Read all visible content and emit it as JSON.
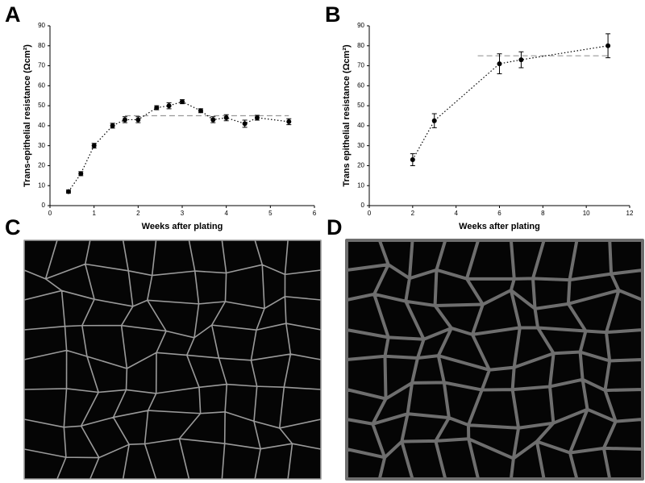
{
  "chart_data": [
    {
      "type": "scatter-line",
      "label": "A",
      "xlabel": "Weeks after plating",
      "ylabel": "Trans-epithelial resistance (Ωcm²)",
      "x": [
        0.42,
        0.7,
        1.0,
        1.42,
        1.7,
        2.0,
        2.42,
        2.7,
        3.0,
        3.42,
        3.7,
        4.0,
        4.42,
        4.7,
        5.42
      ],
      "series": [
        {
          "color": "#000000",
          "values": [
            7,
            16,
            30,
            40,
            43,
            43,
            49,
            50,
            52,
            47.5,
            43,
            44,
            41,
            44,
            42
          ],
          "errors": [
            0.8,
            1,
            1.2,
            1.2,
            1.5,
            1.5,
            1,
            1.5,
            1,
            1,
            1.5,
            1.5,
            1.8,
            1.2,
            1.5
          ]
        }
      ],
      "reference_line": {
        "value": 45,
        "x": [
          1.7,
          5.42
        ],
        "color": "#999999"
      },
      "xlim": [
        0,
        6
      ],
      "xticks": [
        0,
        1,
        2,
        3,
        4,
        5,
        6
      ],
      "ylim": [
        0,
        90
      ],
      "yticks": [
        0,
        10,
        20,
        30,
        40,
        50,
        60,
        70,
        80,
        90
      ]
    },
    {
      "type": "scatter-line",
      "label": "B",
      "xlabel": "Weeks after plating",
      "ylabel": "Trans epithelial resistance (Ωcm²)",
      "x": [
        2,
        3,
        6,
        7,
        11
      ],
      "series": [
        {
          "color": "#000000",
          "values": [
            23,
            42.5,
            71,
            73,
            80
          ],
          "errors": [
            3,
            3.5,
            5,
            4,
            6
          ]
        }
      ],
      "reference_line": {
        "value": 75,
        "x": [
          5,
          11
        ],
        "color": "#999999"
      },
      "xlim": [
        0,
        12
      ],
      "xticks": [
        0,
        2,
        4,
        6,
        8,
        10,
        12
      ],
      "ylim": [
        0,
        90
      ],
      "yticks": [
        0,
        10,
        20,
        30,
        40,
        50,
        60,
        70,
        80,
        90
      ]
    }
  ],
  "images": [
    {
      "label": "C"
    },
    {
      "label": "D"
    }
  ]
}
